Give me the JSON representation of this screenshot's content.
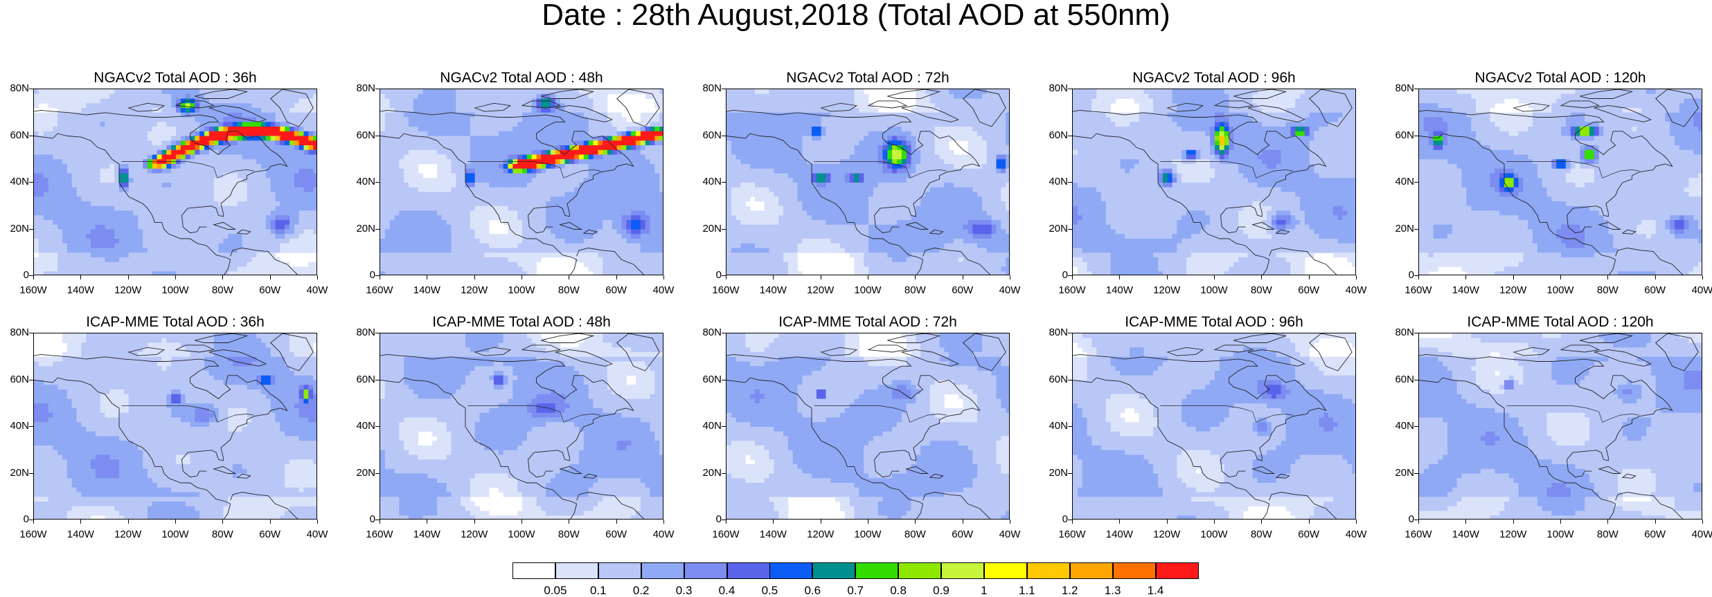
{
  "title": "Date : 28th August,2018 (Total AOD at 550nm)",
  "lat_labels": [
    "80N",
    "60N",
    "40N",
    "20N",
    "0"
  ],
  "lon_labels": [
    "160W",
    "140W",
    "120W",
    "100W",
    "80W",
    "60W",
    "40W"
  ],
  "panels": [
    {
      "title": "NGACv2 Total AOD : 36h",
      "model": "NGACv2",
      "lead": "36h"
    },
    {
      "title": "NGACv2 Total AOD : 48h",
      "model": "NGACv2",
      "lead": "48h"
    },
    {
      "title": "NGACv2 Total AOD : 72h",
      "model": "NGACv2",
      "lead": "72h"
    },
    {
      "title": "NGACv2 Total AOD : 96h",
      "model": "NGACv2",
      "lead": "96h"
    },
    {
      "title": "NGACv2 Total AOD : 120h",
      "model": "NGACv2",
      "lead": "120h"
    },
    {
      "title": "ICAP-MME Total AOD : 36h",
      "model": "ICAP-MME",
      "lead": "36h"
    },
    {
      "title": "ICAP-MME Total AOD : 48h",
      "model": "ICAP-MME",
      "lead": "48h"
    },
    {
      "title": "ICAP-MME Total AOD : 72h",
      "model": "ICAP-MME",
      "lead": "72h"
    },
    {
      "title": "ICAP-MME Total AOD : 96h",
      "model": "ICAP-MME",
      "lead": "96h"
    },
    {
      "title": "ICAP-MME Total AOD : 120h",
      "model": "ICAP-MME",
      "lead": "120h"
    }
  ],
  "colorbar": {
    "labels": [
      "0.05",
      "0.1",
      "0.2",
      "0.3",
      "0.4",
      "0.5",
      "0.6",
      "0.7",
      "0.8",
      "0.9",
      "1",
      "1.1",
      "1.2",
      "1.3",
      "1.4"
    ],
    "colors": [
      "#ffffff",
      "#dbe3fb",
      "#b9c7f7",
      "#8fa9f5",
      "#7c8cf0",
      "#5a64ea",
      "#0b5cf5",
      "#009090",
      "#33dd00",
      "#8ee800",
      "#c8f53c",
      "#ffff00",
      "#ffc800",
      "#ffa500",
      "#ff7200",
      "#ff1a1a"
    ]
  },
  "colors": {
    "land_outline": "#222222",
    "background_low": "#dfe6fb",
    "base_field": "#c3cff8"
  }
}
